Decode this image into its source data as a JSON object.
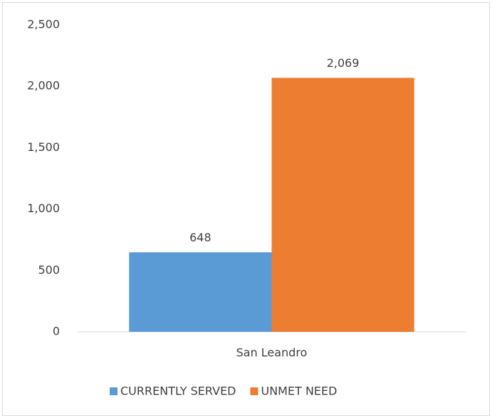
{
  "chart_data": {
    "type": "bar",
    "categories": [
      "San Leandro"
    ],
    "series": [
      {
        "name": "CURRENTLY SERVED",
        "color": "#5b9bd5",
        "values": [
          648
        ],
        "value_labels": [
          "648"
        ]
      },
      {
        "name": "UNMET NEED",
        "color": "#ed7d31",
        "values": [
          2069
        ],
        "value_labels": [
          "2,069"
        ]
      }
    ],
    "ylim": [
      0,
      2500
    ],
    "yticks": [
      0,
      500,
      {
        "value": 1000,
        "label": "1,000"
      },
      {
        "value": 1500,
        "label": "1,500"
      },
      {
        "value": 2000,
        "label": "2,000"
      },
      {
        "value": 2500,
        "label": "2,500"
      }
    ],
    "grid": false,
    "legend": "bottom"
  }
}
